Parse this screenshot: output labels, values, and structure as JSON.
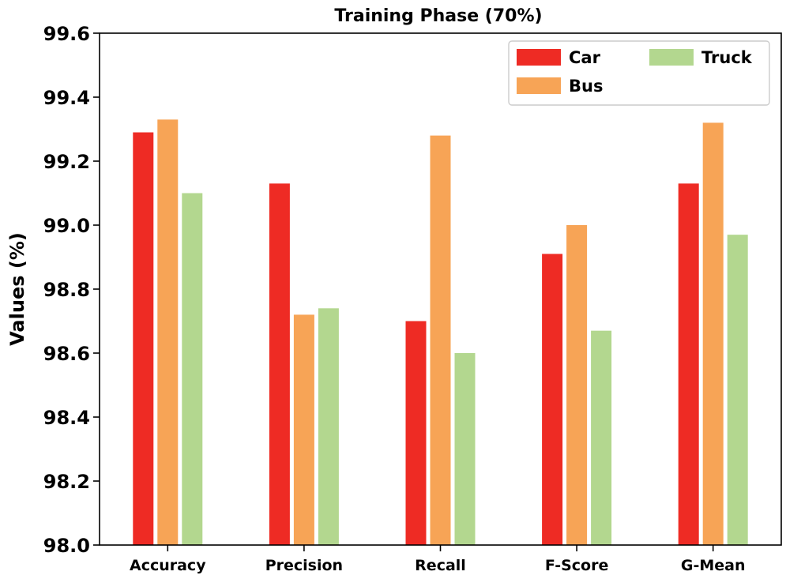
{
  "chart_data": {
    "type": "bar",
    "title": "Training Phase (70%)",
    "xlabel": "",
    "ylabel": "Values (%)",
    "ylim": [
      98.0,
      99.6
    ],
    "yticks": [
      "98.0",
      "98.2",
      "98.4",
      "98.6",
      "98.8",
      "99.0",
      "99.2",
      "99.4",
      "99.6"
    ],
    "categories": [
      "Accuracy",
      "Precision",
      "Recall",
      "F-Score",
      "G-Mean"
    ],
    "series": [
      {
        "name": "Car",
        "color": "#ee2b24",
        "values": [
          99.29,
          99.13,
          98.7,
          98.91,
          99.13
        ]
      },
      {
        "name": "Bus",
        "color": "#f7a456",
        "values": [
          99.33,
          98.72,
          99.28,
          99.0,
          99.32
        ]
      },
      {
        "name": "Truck",
        "color": "#b3d78f",
        "values": [
          99.1,
          98.74,
          98.6,
          98.67,
          98.97
        ]
      }
    ],
    "legend": {
      "placement": "top-right",
      "columns": 2
    },
    "grid": false
  }
}
